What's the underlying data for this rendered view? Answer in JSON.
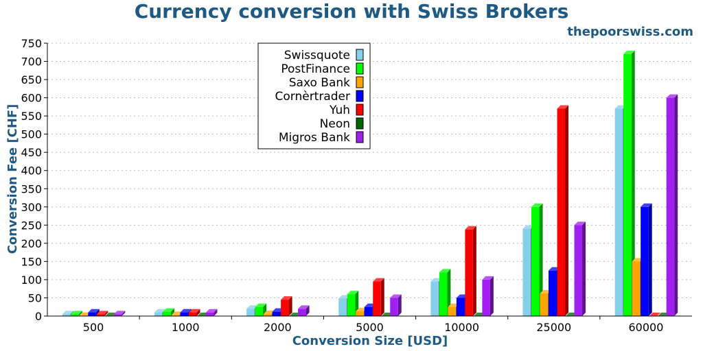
{
  "chart_data": {
    "type": "bar",
    "title": "Currency conversion with Swiss Brokers",
    "subtitle": "thepoorswiss.com",
    "xlabel": "Conversion Size [USD]",
    "ylabel": "Conversion Fee [CHF]",
    "ylim": [
      0,
      750
    ],
    "yticks": [
      "0",
      "50",
      "100",
      "150",
      "200",
      "250",
      "300",
      "350",
      "400",
      "450",
      "500",
      "550",
      "600",
      "650",
      "700",
      "750"
    ],
    "categories": [
      "500",
      "1000",
      "2000",
      "5000",
      "10000",
      "25000",
      "60000"
    ],
    "grid": "horizontal-dotted",
    "legend_position": "top-center",
    "series": [
      {
        "name": "Swissquote",
        "color": "#87ceeb",
        "values": [
          5,
          10,
          20,
          48,
          95,
          240,
          570
        ]
      },
      {
        "name": "PostFinance",
        "color": "#00ff00",
        "values": [
          5,
          12,
          25,
          60,
          120,
          300,
          720
        ]
      },
      {
        "name": "Saxo Bank",
        "color": "#ffa500",
        "values": [
          1,
          3,
          6,
          13,
          25,
          62,
          150
        ]
      },
      {
        "name": "Cornèrtrader",
        "color": "#0000ff",
        "values": [
          10,
          10,
          12,
          25,
          50,
          125,
          300
        ]
      },
      {
        "name": "Yuh",
        "color": "#ff0000",
        "values": [
          5,
          10,
          45,
          95,
          238,
          570,
          0
        ]
      },
      {
        "name": "Neon",
        "color": "#006400",
        "values": [
          0,
          0,
          0,
          0,
          0,
          0,
          0
        ]
      },
      {
        "name": "Migros Bank",
        "color": "#a020f0",
        "values": [
          5,
          10,
          20,
          50,
          100,
          250,
          600
        ]
      }
    ]
  }
}
